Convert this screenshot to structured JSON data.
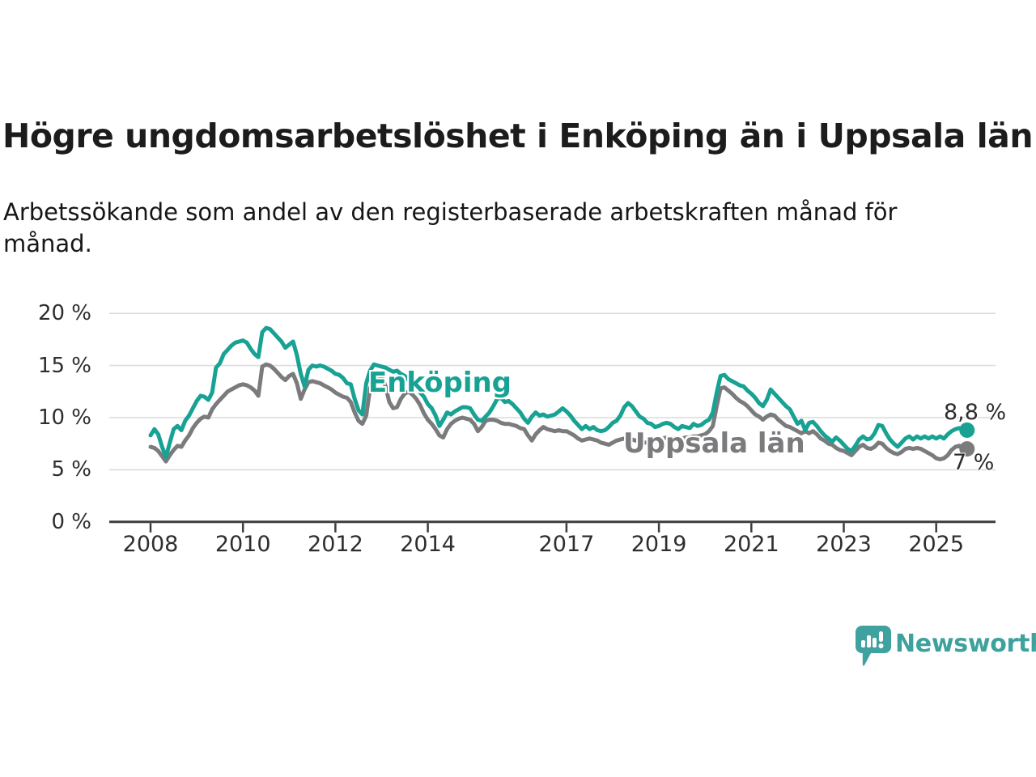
{
  "title": "Högre ungdomsarbetslöshet i Enköping än i Uppsala län",
  "subtitle_lines": [
    "Arbetssökande som andel av den registerbaserade arbetskraften månad för",
    "månad."
  ],
  "branding": {
    "logo_text": "Newsworthy",
    "logo_icon": "bar-chart-speech-bubble-icon",
    "logo_color": "#40a29f"
  },
  "chart_data": {
    "type": "line",
    "unit": "%",
    "x_interval": "monthly",
    "x_start": "2008-01",
    "x_end": "2025-09",
    "grid": true,
    "ylim": [
      0,
      21
    ],
    "y_ticks": [
      {
        "value": 0,
        "label": "0 %"
      },
      {
        "value": 5,
        "label": "5 %"
      },
      {
        "value": 10,
        "label": "10 %"
      },
      {
        "value": 15,
        "label": "15 %"
      },
      {
        "value": 20,
        "label": "20 %"
      }
    ],
    "x_ticks": [
      {
        "year": 2008,
        "label": "2008"
      },
      {
        "year": 2010,
        "label": "2010"
      },
      {
        "year": 2012,
        "label": "2012"
      },
      {
        "year": 2014,
        "label": "2014"
      },
      {
        "year": 2017,
        "label": "2017"
      },
      {
        "year": 2019,
        "label": "2019"
      },
      {
        "year": 2021,
        "label": "2021"
      },
      {
        "year": 2023,
        "label": "2023"
      },
      {
        "year": 2025,
        "label": "2025"
      }
    ],
    "series": [
      {
        "name": "Enköping",
        "color": "#17a294",
        "end_label": "8,8 %",
        "end_value": 8.8,
        "values": [
          8.3,
          8.9,
          8.4,
          7.2,
          6.2,
          7.6,
          8.9,
          9.2,
          8.8,
          9.7,
          10.2,
          10.9,
          11.6,
          12.1,
          12.0,
          11.7,
          12.4,
          14.8,
          15.2,
          16.1,
          16.5,
          16.9,
          17.2,
          17.3,
          17.4,
          17.2,
          16.6,
          16.1,
          15.8,
          18.2,
          18.6,
          18.5,
          18.1,
          17.7,
          17.3,
          16.7,
          17.0,
          17.3,
          16.0,
          14.2,
          13.0,
          14.6,
          15.0,
          14.9,
          15.0,
          14.9,
          14.7,
          14.5,
          14.2,
          14.1,
          13.8,
          13.3,
          13.2,
          11.8,
          10.7,
          10.3,
          13.3,
          14.5,
          15.1,
          15.0,
          14.9,
          14.8,
          14.6,
          14.4,
          14.5,
          14.2,
          14.0,
          13.6,
          13.2,
          12.8,
          12.4,
          12.0,
          11.3,
          10.9,
          10.2,
          9.2,
          9.8,
          10.5,
          10.3,
          10.6,
          10.8,
          11.0,
          11.0,
          10.9,
          10.3,
          9.8,
          9.7,
          10.1,
          10.5,
          11.1,
          11.8,
          11.9,
          11.5,
          11.6,
          11.3,
          10.9,
          10.5,
          9.9,
          9.5,
          10.1,
          10.5,
          10.2,
          10.3,
          10.1,
          10.2,
          10.3,
          10.6,
          10.9,
          10.6,
          10.2,
          9.7,
          9.3,
          8.9,
          9.2,
          8.9,
          9.1,
          8.8,
          8.7,
          8.8,
          9.1,
          9.5,
          9.7,
          10.2,
          11.0,
          11.4,
          11.1,
          10.6,
          10.1,
          9.9,
          9.5,
          9.4,
          9.1,
          9.2,
          9.4,
          9.5,
          9.4,
          9.1,
          8.9,
          9.2,
          9.1,
          9.0,
          9.4,
          9.2,
          9.3,
          9.6,
          9.8,
          10.5,
          12.4,
          14.0,
          14.1,
          13.7,
          13.5,
          13.3,
          13.1,
          13.0,
          12.6,
          12.3,
          11.9,
          11.4,
          11.1,
          11.7,
          12.7,
          12.3,
          11.9,
          11.5,
          11.1,
          10.8,
          10.1,
          9.4,
          9.7,
          8.8,
          9.5,
          9.6,
          9.2,
          8.7,
          8.3,
          8.0,
          7.7,
          8.1,
          7.8,
          7.4,
          7.0,
          6.8,
          7.3,
          7.9,
          8.2,
          7.9,
          8.0,
          8.5,
          9.3,
          9.2,
          8.5,
          7.9,
          7.5,
          7.2,
          7.6,
          8.0,
          8.2,
          7.9,
          8.2,
          8.0,
          8.2,
          8.0,
          8.2,
          8.0,
          8.2,
          8.0,
          8.4,
          8.7,
          8.9,
          9.0,
          8.9,
          8.8
        ]
      },
      {
        "name": "Uppsala län",
        "color": "#7b7b7e",
        "end_label": "7 %",
        "end_value": 7.0,
        "values": [
          7.2,
          7.1,
          6.8,
          6.3,
          5.8,
          6.4,
          6.9,
          7.3,
          7.2,
          7.8,
          8.3,
          9.0,
          9.5,
          9.9,
          10.1,
          10.0,
          10.8,
          11.3,
          11.7,
          12.1,
          12.5,
          12.7,
          12.9,
          13.1,
          13.2,
          13.1,
          12.9,
          12.6,
          12.1,
          14.9,
          15.1,
          15.0,
          14.7,
          14.3,
          13.9,
          13.6,
          14.0,
          14.2,
          13.3,
          11.8,
          12.7,
          13.4,
          13.5,
          13.4,
          13.3,
          13.1,
          12.9,
          12.7,
          12.4,
          12.2,
          12.0,
          11.9,
          11.5,
          10.5,
          9.7,
          9.4,
          10.2,
          12.8,
          13.7,
          14.1,
          14.0,
          13.0,
          11.5,
          10.9,
          11.0,
          11.8,
          12.3,
          12.5,
          12.2,
          11.8,
          11.2,
          10.4,
          9.8,
          9.4,
          8.9,
          8.3,
          8.1,
          8.9,
          9.4,
          9.7,
          9.9,
          10.0,
          9.9,
          9.8,
          9.4,
          8.7,
          9.1,
          9.7,
          9.8,
          9.8,
          9.7,
          9.5,
          9.4,
          9.4,
          9.3,
          9.2,
          9.0,
          8.9,
          8.3,
          7.8,
          8.4,
          8.8,
          9.1,
          8.9,
          8.8,
          8.7,
          8.8,
          8.7,
          8.7,
          8.5,
          8.3,
          8.0,
          7.8,
          7.9,
          8.0,
          7.9,
          7.8,
          7.6,
          7.5,
          7.4,
          7.6,
          7.8,
          7.9,
          8.0,
          8.0,
          7.9,
          7.8,
          7.7,
          7.6,
          7.6,
          7.7,
          7.8,
          7.9,
          8.0,
          8.1,
          8.0,
          8.1,
          8.1,
          8.0,
          8.1,
          8.1,
          8.2,
          8.2,
          8.3,
          8.4,
          8.7,
          9.2,
          11.1,
          12.8,
          12.9,
          12.6,
          12.3,
          11.9,
          11.6,
          11.4,
          11.1,
          10.7,
          10.3,
          10.1,
          9.8,
          10.1,
          10.3,
          10.2,
          9.8,
          9.5,
          9.2,
          9.1,
          8.9,
          8.7,
          8.5,
          8.7,
          8.5,
          8.7,
          8.4,
          8.0,
          7.8,
          7.5,
          7.4,
          7.1,
          6.9,
          6.8,
          6.6,
          6.4,
          6.8,
          7.2,
          7.4,
          7.1,
          7.0,
          7.2,
          7.6,
          7.5,
          7.1,
          6.8,
          6.6,
          6.5,
          6.7,
          7.0,
          7.1,
          7.0,
          7.1,
          7.0,
          6.8,
          6.6,
          6.4,
          6.1,
          6.0,
          6.1,
          6.4,
          6.9,
          7.2,
          7.3,
          7.1,
          7.0
        ]
      }
    ]
  }
}
